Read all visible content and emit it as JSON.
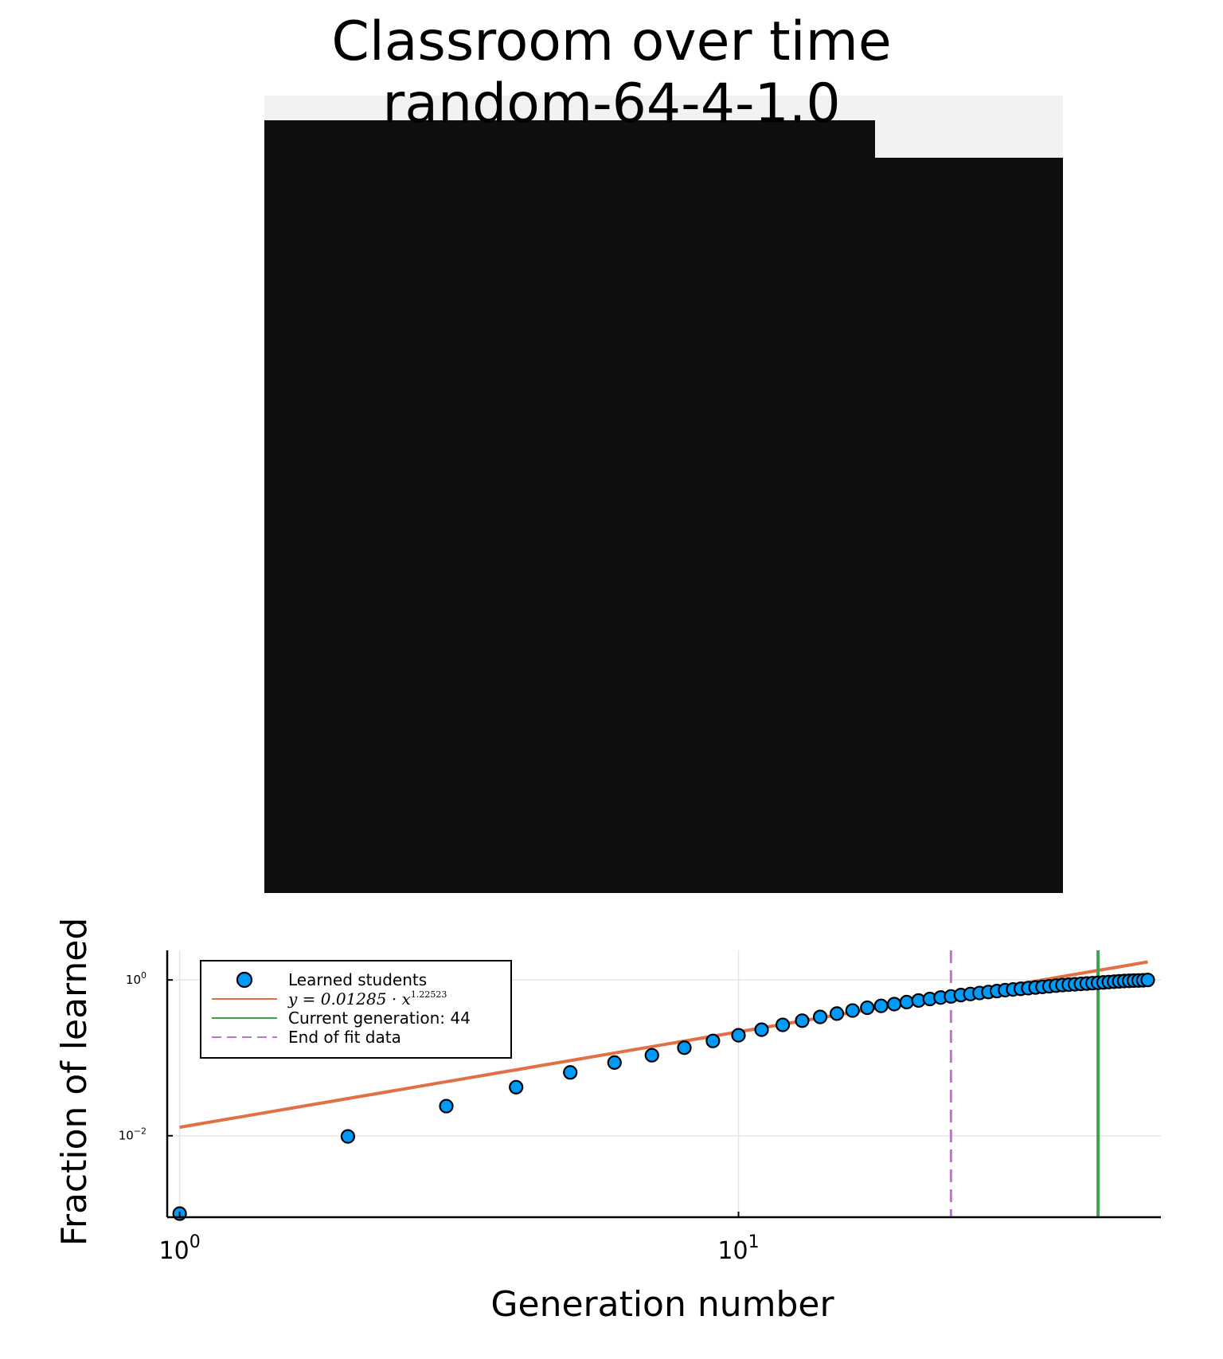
{
  "title": {
    "line1": "Classroom over time",
    "line2": "random-64-4-1.0"
  },
  "heatmap": {
    "background_color": "#f2f2f2",
    "learned_color": "#0e0e0e",
    "description_rows": 64
  },
  "chart_data": {
    "type": "scatter",
    "xlabel": "Generation number",
    "ylabel": "Fraction of learned",
    "xscale": "log10",
    "yscale": "log10",
    "xlim": [
      0.95,
      57
    ],
    "ylim": [
      0.0009,
      2.4
    ],
    "xticks": [
      {
        "value": 1,
        "base": "10",
        "exp": "0"
      },
      {
        "value": 10,
        "base": "10",
        "exp": "1"
      }
    ],
    "yticks": [
      {
        "value": 1,
        "base": "10",
        "exp": "0"
      },
      {
        "value": 0.01,
        "base": "10",
        "exp": "−2"
      }
    ],
    "grid": true,
    "legend_position": "top-left",
    "series": [
      {
        "name": "Learned students",
        "kind": "scatter",
        "color": "#009af9",
        "x": [
          1,
          2,
          3,
          4,
          5,
          6,
          7,
          8,
          9,
          10,
          11,
          12,
          13,
          14,
          15,
          16,
          17,
          18,
          19,
          20,
          21,
          22,
          23,
          24,
          25,
          26,
          27,
          28,
          29,
          30,
          31,
          32,
          33,
          34,
          35,
          36,
          37,
          38,
          39,
          40,
          41,
          42,
          43,
          44,
          45,
          46,
          47,
          48,
          49,
          50,
          51,
          52,
          53,
          54
        ],
        "y": [
          0.001,
          0.0098,
          0.024,
          0.042,
          0.065,
          0.087,
          0.108,
          0.135,
          0.165,
          0.195,
          0.23,
          0.265,
          0.3,
          0.335,
          0.37,
          0.405,
          0.44,
          0.465,
          0.49,
          0.52,
          0.545,
          0.57,
          0.595,
          0.615,
          0.64,
          0.66,
          0.68,
          0.7,
          0.72,
          0.74,
          0.755,
          0.77,
          0.785,
          0.8,
          0.815,
          0.83,
          0.845,
          0.86,
          0.87,
          0.88,
          0.89,
          0.9,
          0.91,
          0.92,
          0.93,
          0.94,
          0.95,
          0.96,
          0.97,
          0.975,
          0.98,
          0.985,
          0.99,
          1.0
        ]
      },
      {
        "name": "y = 0.01285 · x^1.22523",
        "legend_prefix": "y = 0.01285 · x",
        "legend_exp": "1.22523",
        "kind": "line",
        "color": "#e26f46",
        "coefficient": 0.01285,
        "exponent": 1.22523,
        "x_range": [
          1,
          54
        ]
      },
      {
        "name": "Current generation: 44",
        "kind": "vline",
        "color": "#3da44d",
        "x": 44
      },
      {
        "name": "End of fit data",
        "kind": "vline-dashed",
        "color": "#c271d2",
        "x": 24
      }
    ]
  }
}
